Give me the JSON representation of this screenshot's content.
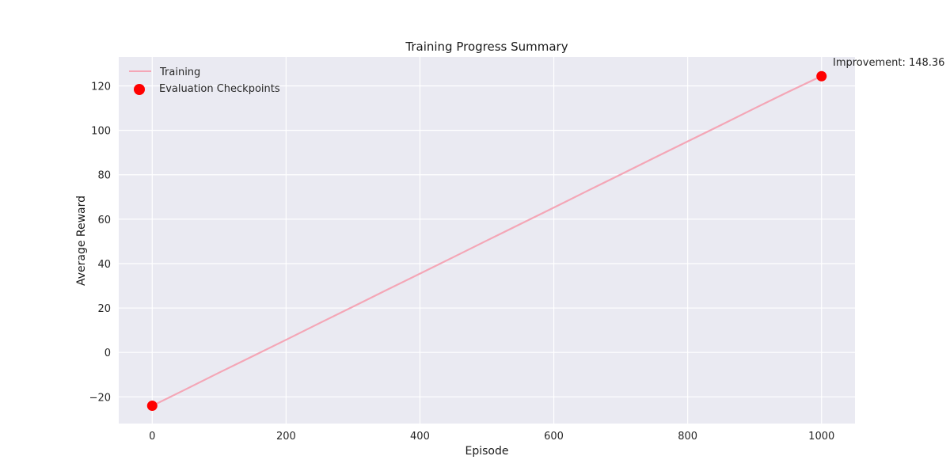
{
  "chart_data": {
    "type": "line",
    "title": "Training Progress Summary",
    "xlabel": "Episode",
    "ylabel": "Average Reward",
    "xlim": [
      -50,
      1050
    ],
    "ylim": [
      -32,
      133
    ],
    "xticks": [
      0,
      200,
      400,
      600,
      800,
      1000
    ],
    "yticks": [
      -20,
      0,
      20,
      40,
      60,
      80,
      100,
      120
    ],
    "grid": true,
    "legend_position": "top-left",
    "series": [
      {
        "name": "Training",
        "kind": "line",
        "color": "#f4a6b6",
        "x": [
          0,
          50,
          100,
          150,
          200,
          250,
          300,
          350,
          400,
          450,
          500,
          550,
          600,
          650,
          700,
          750,
          800,
          850,
          900,
          950,
          1000
        ],
        "y": [
          -24,
          -16.6,
          -9.1,
          -1.7,
          5.7,
          13.2,
          20.6,
          28.1,
          35.5,
          42.9,
          50.4,
          57.8,
          65.2,
          72.7,
          80.1,
          87.6,
          95.0,
          102.4,
          109.9,
          117.3,
          124.4
        ]
      },
      {
        "name": "Evaluation Checkpoints",
        "kind": "scatter",
        "color": "#ff0000",
        "x": [
          0,
          1000
        ],
        "y": [
          -24,
          124.36
        ]
      }
    ],
    "annotations": [
      {
        "text": "Improvement: 148.36",
        "x": 1000,
        "y": 124.36
      }
    ]
  }
}
